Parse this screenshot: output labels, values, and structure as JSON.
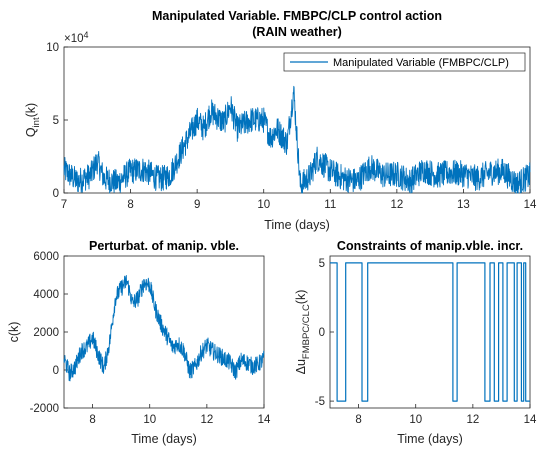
{
  "chart_data": [
    {
      "type": "line",
      "title": "Manipulated Variable. FMBPC/CLP control action",
      "subtitle": "(RAIN weather)",
      "xlabel": "Time (days)",
      "ylabel": "Q",
      "ylabel_sub": "int",
      "ylabel_suffix": "(k)",
      "exponent_label": "×10",
      "exponent_power": "4",
      "xlim": [
        7,
        14
      ],
      "ylim": [
        0,
        10
      ],
      "xticks": [
        "7",
        "8",
        "9",
        "10",
        "11",
        "12",
        "13",
        "14"
      ],
      "yticks": [
        "0",
        "5",
        "10"
      ],
      "legend": "Manipulated Variable (FMBPC/CLP)",
      "legend_position": "top-right",
      "color": "#0072BD",
      "series": [
        {
          "name": "Manipulated Variable (FMBPC/CLP)",
          "x": [
            7.0,
            7.2,
            7.4,
            7.5,
            7.6,
            7.8,
            8.0,
            8.2,
            8.4,
            8.5,
            8.6,
            8.8,
            9.0,
            9.1,
            9.2,
            9.4,
            9.5,
            9.6,
            9.8,
            10.0,
            10.1,
            10.2,
            10.35,
            10.45,
            10.55,
            10.7,
            10.8,
            11.0,
            11.2,
            11.4,
            11.6,
            11.8,
            12.0,
            12.2,
            12.4,
            12.6,
            12.8,
            13.0,
            13.2,
            13.4,
            13.6,
            13.8,
            14.0
          ],
          "y": [
            1.6,
            0.8,
            1.2,
            2.2,
            1.0,
            0.7,
            1.5,
            1.6,
            1.0,
            1.0,
            1.3,
            3.2,
            5.0,
            4.4,
            5.6,
            4.8,
            6.0,
            4.4,
            5.0,
            5.0,
            3.8,
            4.4,
            3.4,
            7.0,
            0.5,
            1.2,
            2.4,
            1.5,
            1.0,
            0.8,
            1.8,
            1.2,
            1.3,
            0.8,
            1.6,
            1.2,
            1.4,
            1.3,
            1.0,
            1.4,
            1.5,
            0.6,
            1.2
          ]
        }
      ]
    },
    {
      "type": "line",
      "title": "Perturbat. of manip. vble.",
      "xlabel": "Time (days)",
      "ylabel": "c(k)",
      "xlim": [
        7,
        14
      ],
      "ylim": [
        -2000,
        6000
      ],
      "xticks": [
        "8",
        "10",
        "12",
        "14"
      ],
      "yticks": [
        "-2000",
        "0",
        "2000",
        "4000",
        "6000"
      ],
      "color": "#0072BD",
      "series": [
        {
          "x": [
            7.0,
            7.2,
            7.4,
            7.6,
            7.8,
            8.0,
            8.2,
            8.4,
            8.6,
            8.8,
            9.0,
            9.2,
            9.4,
            9.6,
            9.8,
            10.0,
            10.2,
            10.4,
            10.6,
            10.8,
            11.0,
            11.2,
            11.4,
            11.6,
            11.8,
            12.0,
            12.2,
            12.4,
            12.6,
            12.8,
            13.0,
            13.2,
            13.4,
            13.6,
            13.8,
            14.0
          ],
          "y": [
            600,
            -200,
            200,
            1000,
            1200,
            1700,
            800,
            100,
            1500,
            3800,
            4300,
            4700,
            3500,
            3800,
            4600,
            4500,
            3200,
            2400,
            1800,
            1200,
            1400,
            1000,
            -100,
            200,
            900,
            1300,
            1000,
            800,
            600,
            400,
            -100,
            500,
            400,
            200,
            300,
            600
          ]
        }
      ]
    },
    {
      "type": "line",
      "title": "Constraints of manip.vble. incr.",
      "xlabel": "Time (days)",
      "ylabel": "Δu",
      "ylabel_sub": "FMBPC/CLC",
      "ylabel_suffix": "(k)",
      "xlim": [
        7,
        14
      ],
      "ylim": [
        -5.5,
        5.5
      ],
      "xticks": [
        "8",
        "10",
        "12",
        "14"
      ],
      "yticks": [
        "-5",
        "0",
        "5"
      ],
      "color": "#0072BD",
      "series": [
        {
          "x": [
            7.0,
            7.25,
            7.25,
            7.55,
            7.55,
            8.12,
            8.12,
            8.32,
            8.32,
            11.3,
            11.3,
            11.45,
            11.45,
            12.42,
            12.42,
            12.6,
            12.6,
            12.75,
            12.75,
            12.9,
            12.9,
            13.05,
            13.05,
            13.2,
            13.2,
            13.45,
            13.45,
            13.55,
            13.55,
            13.7,
            13.7,
            13.78,
            13.78,
            13.85,
            13.85,
            14.0
          ],
          "y": [
            5,
            5,
            -5,
            -5,
            5,
            5,
            -5,
            -5,
            5,
            5,
            -5,
            -5,
            5,
            5,
            -5,
            -5,
            5,
            5,
            -5,
            -5,
            5,
            5,
            -5,
            -5,
            5,
            5,
            -5,
            -5,
            5,
            5,
            -5,
            -5,
            5,
            5,
            -5,
            -5
          ]
        }
      ]
    }
  ]
}
